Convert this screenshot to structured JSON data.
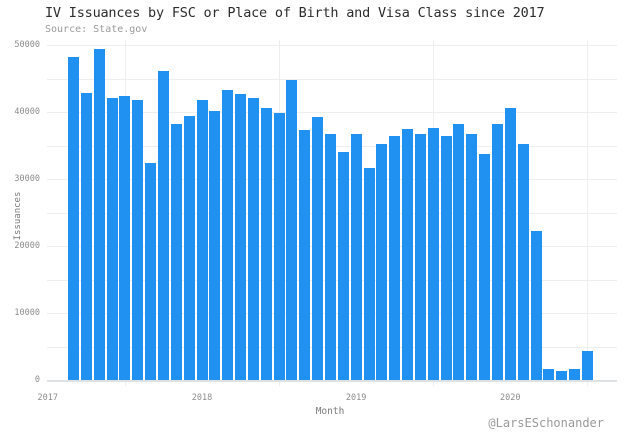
{
  "header": {
    "title": "IV Issuances by FSC or Place of Birth and Visa Class since 2017",
    "source": "Source: State.gov"
  },
  "watermark": "@LarsESchonander",
  "colors": {
    "bar": "#2191f1",
    "gridline": "#eceef0",
    "zeroline": "#dde1e4",
    "title_text": "#2d2d2d",
    "muted_text": "#9a9a9a",
    "tick_text": "#8b8b8b",
    "axis_title_text": "#7a7a7a",
    "background": "#ffffff"
  },
  "chart_data": {
    "type": "bar",
    "title": "IV Issuances by FSC or Place of Birth and Visa Class since 2017",
    "subtitle": "Source: State.gov",
    "xlabel": "Month",
    "ylabel": "Issuances",
    "ylim": [
      0,
      50000
    ],
    "ytick_interval": 10000,
    "grid_interval": 5000,
    "grid": true,
    "legend": false,
    "x": [
      "2017-03",
      "2017-04",
      "2017-05",
      "2017-06",
      "2017-07",
      "2017-08",
      "2017-09",
      "2017-10",
      "2017-11",
      "2017-12",
      "2018-01",
      "2018-02",
      "2018-03",
      "2018-04",
      "2018-05",
      "2018-06",
      "2018-07",
      "2018-08",
      "2018-09",
      "2018-10",
      "2018-11",
      "2018-12",
      "2019-01",
      "2019-02",
      "2019-03",
      "2019-04",
      "2019-05",
      "2019-06",
      "2019-07",
      "2019-08",
      "2019-09",
      "2019-10",
      "2019-11",
      "2019-12",
      "2020-01",
      "2020-02",
      "2020-03",
      "2020-04",
      "2020-05",
      "2020-06",
      "2020-07"
    ],
    "values": [
      48200,
      42900,
      49400,
      42100,
      42500,
      41900,
      32400,
      46200,
      38300,
      39500,
      41900,
      40200,
      43300,
      42700,
      42200,
      40600,
      39900,
      44800,
      37300,
      39300,
      36800,
      34100,
      36700,
      31700,
      35200,
      36400,
      37500,
      36800,
      37600,
      36500,
      38200,
      36700,
      33700,
      38200,
      40700,
      35200,
      22300,
      1700,
      1400,
      1700,
      4400
    ],
    "x_gridline_months": [
      "2017-07",
      "2018-07",
      "2019-07",
      "2020-07"
    ],
    "x_tick_labels": [
      {
        "text": "2017",
        "month": "2017-01"
      },
      {
        "text": "2018",
        "month": "2018-01"
      },
      {
        "text": "2019",
        "month": "2019-01"
      },
      {
        "text": "2020",
        "month": "2020-01"
      }
    ],
    "y_tick_labels": [
      "0",
      "10000",
      "20000",
      "30000",
      "40000",
      "50000"
    ]
  }
}
